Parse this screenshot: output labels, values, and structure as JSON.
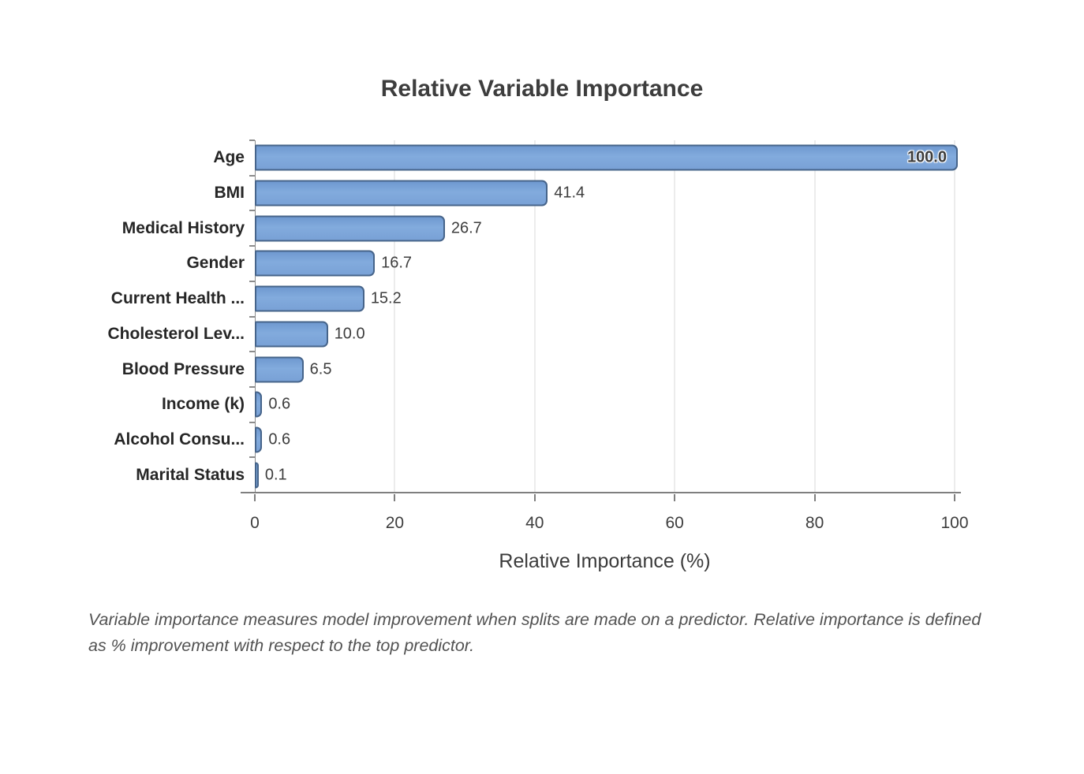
{
  "chart_data": {
    "type": "bar",
    "orientation": "horizontal",
    "title": "Relative Variable Importance",
    "xlabel": "Relative Importance (%)",
    "ylabel": "",
    "categories": [
      "Age",
      "BMI",
      "Medical History",
      "Gender",
      "Current Health ...",
      "Cholesterol Lev...",
      "Blood Pressure",
      "Income (k)",
      "Alcohol Consu...",
      "Marital Status"
    ],
    "values": [
      100.0,
      41.4,
      26.7,
      16.7,
      15.2,
      10.0,
      6.5,
      0.6,
      0.6,
      0.1
    ],
    "value_labels": [
      "100.0",
      "41.4",
      "26.7",
      "16.7",
      "15.2",
      "10.0",
      "6.5",
      "0.6",
      "0.6",
      "0.1"
    ],
    "xlim": [
      0,
      100
    ],
    "x_ticks": [
      0,
      20,
      40,
      60,
      80,
      100
    ],
    "grid": "vertical-only",
    "legend": "none",
    "bar_color": "#79a1d6",
    "bar_border_color": "#46648a",
    "gridline_color": "#d8d8d8"
  },
  "caption": {
    "text": "Variable importance measures model improvement when splits are made on a predictor. Relative importance is defined as % improvement with respect to the top predictor."
  }
}
